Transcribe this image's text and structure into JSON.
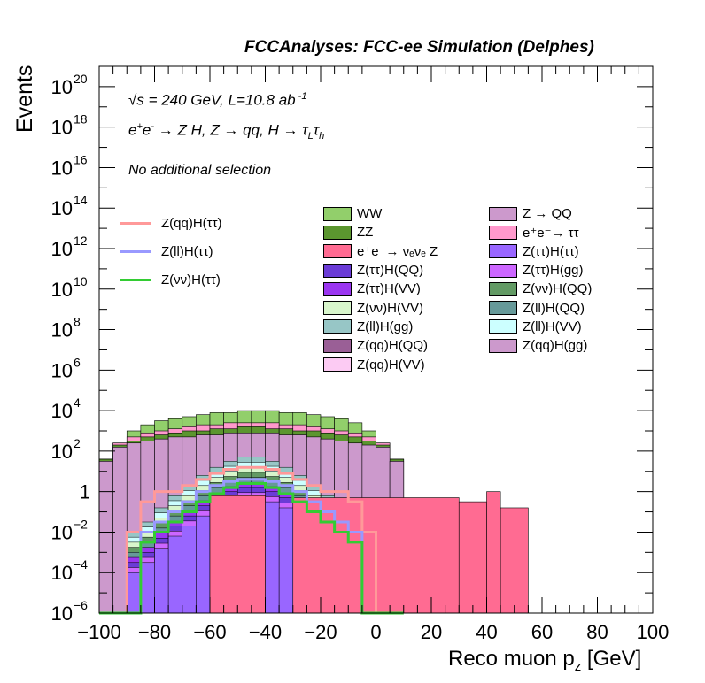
{
  "chart_data": {
    "type": "histogram",
    "title": "FCCAnalyses: FCC-ee Simulation (Delphes)",
    "xlabel": "Reco muon p",
    "xlabel_sub": "z",
    "xlabel_unit": " [GeV]",
    "ylabel": "Events",
    "xlim": [
      -100,
      100
    ],
    "ylim_log10": [
      -6,
      21
    ],
    "y_scale": "log",
    "x_ticks": [
      "−100",
      "−80",
      "−60",
      "−40",
      "−20",
      "0",
      "20",
      "40",
      "60",
      "80",
      "100"
    ],
    "y_ticks": [
      {
        "base": "10",
        "exp": "−6"
      },
      {
        "base": "10",
        "exp": "−4"
      },
      {
        "base": "10",
        "exp": "−2"
      },
      {
        "base": "1",
        "exp": ""
      },
      {
        "base": "10",
        "exp": "2"
      },
      {
        "base": "10",
        "exp": "4"
      },
      {
        "base": "10",
        "exp": "6"
      },
      {
        "base": "10",
        "exp": "8"
      },
      {
        "base": "10",
        "exp": "10"
      },
      {
        "base": "10",
        "exp": "12"
      },
      {
        "base": "10",
        "exp": "14"
      },
      {
        "base": "10",
        "exp": "16"
      },
      {
        "base": "10",
        "exp": "18"
      },
      {
        "base": "10",
        "exp": "20"
      }
    ],
    "annotations": {
      "energy_prefix": "s",
      "energy_rest": " = 240 GeV, L=10.8 ab",
      "energy_sup": " -1",
      "process": "e",
      "selection": "No additional selection"
    },
    "stack_legend_col1": [
      {
        "label": "WW",
        "color": "#92cf6b"
      },
      {
        "label": "ZZ",
        "color": "#5b962f"
      },
      {
        "label": "e⁺e⁻→ νₑνₑ Z",
        "color": "#ff6b92"
      },
      {
        "label": "Z(ττ)H(QQ)",
        "color": "#6a3bd6"
      },
      {
        "label": "Z(ττ)H(VV)",
        "color": "#9a35f0"
      },
      {
        "label": "Z(νν)H(VV)",
        "color": "#d8f6cc"
      },
      {
        "label": "Z(ll)H(gg)",
        "color": "#97c6c6"
      },
      {
        "label": "Z(qq)H(QQ)",
        "color": "#9a5f96"
      },
      {
        "label": "Z(qq)H(VV)",
        "color": "#fccbf3"
      }
    ],
    "stack_legend_col2": [
      {
        "label": "Z → QQ",
        "color": "#cc99cc"
      },
      {
        "label": "e⁺e⁻→ ττ",
        "color": "#ff99cc"
      },
      {
        "label": "Z(ττ)H(ττ)",
        "color": "#9966ff"
      },
      {
        "label": "Z(ττ)H(gg)",
        "color": "#cc66ff"
      },
      {
        "label": "Z(νν)H(QQ)",
        "color": "#629a64"
      },
      {
        "label": "Z(ll)H(QQ)",
        "color": "#669999"
      },
      {
        "label": "Z(ll)H(VV)",
        "color": "#ccffff"
      },
      {
        "label": "Z(qq)H(gg)",
        "color": "#cc99cc"
      }
    ],
    "signal_legend": [
      {
        "label": "Z(qq)H(ττ)",
        "color": "#ff9999"
      },
      {
        "label": "Z(ll)H(ττ)",
        "color": "#9999ff"
      },
      {
        "label": "Z(νν)H(ττ)",
        "color": "#33cc33"
      }
    ],
    "bin_width": 5,
    "bin_edges_start": -100,
    "stack_totals_log10": [
      1.6,
      2.4,
      3.0,
      3.3,
      3.5,
      3.6,
      3.7,
      3.8,
      3.9,
      3.9,
      4.0,
      4.0,
      4.0,
      3.9,
      3.9,
      3.8,
      3.7,
      3.6,
      3.4,
      3.0,
      2.4,
      1.6
    ],
    "stack_layers_log10": [
      {
        "name": "Z → QQ",
        "color": "#cc99cc",
        "values": [
          1.5,
          2.2,
          2.4,
          2.5,
          2.6,
          2.7,
          2.7,
          2.8,
          2.8,
          2.9,
          2.9,
          2.9,
          2.9,
          2.8,
          2.8,
          2.7,
          2.6,
          2.5,
          2.4,
          2.3,
          2.2,
          1.5
        ]
      },
      {
        "name": "ZZ",
        "color": "#5b962f",
        "values": [
          1.6,
          2.3,
          2.5,
          2.7,
          2.8,
          2.9,
          3.0,
          3.0,
          3.1,
          3.1,
          3.2,
          3.2,
          3.1,
          3.1,
          3.0,
          3.0,
          2.9,
          2.8,
          2.7,
          2.5,
          2.3,
          1.6
        ]
      },
      {
        "name": "e⁺e⁻→ ττ",
        "color": "#ff99cc",
        "values": [
          1.6,
          2.4,
          2.7,
          2.9,
          3.0,
          3.1,
          3.2,
          3.3,
          3.3,
          3.4,
          3.4,
          3.4,
          3.4,
          3.3,
          3.3,
          3.2,
          3.1,
          3.0,
          2.9,
          2.7,
          2.4,
          1.6
        ]
      },
      {
        "name": "WW",
        "color": "#92cf6b",
        "values": [
          1.6,
          2.4,
          3.0,
          3.3,
          3.5,
          3.6,
          3.7,
          3.8,
          3.9,
          3.9,
          4.0,
          4.0,
          4.0,
          3.9,
          3.9,
          3.8,
          3.7,
          3.6,
          3.4,
          3.0,
          2.4,
          1.6
        ]
      }
    ],
    "minor_stack_log10": [
      -6,
      -6,
      -2,
      -1.5,
      -0.8,
      -0.2,
      0.3,
      0.8,
      1.2,
      1.5,
      1.7,
      1.7,
      1.5,
      1.2,
      0.8,
      0.3,
      -0.2,
      -0.8,
      -1.5,
      -2,
      -6,
      -6
    ],
    "nunuz_log10": [
      -6,
      -6,
      -6,
      -6,
      -6,
      -6,
      -6,
      -6,
      -6,
      -6,
      -6,
      -6,
      -6,
      -6,
      -6,
      -6,
      -6,
      -6,
      -6,
      -6,
      -6,
      -6
    ],
    "signal_series_log10": {
      "Z(qq)H(ττ)": [
        -6,
        -6,
        -2,
        -0.5,
        0.0,
        0.0,
        0.3,
        0.6,
        0.9,
        1.1,
        1.2,
        1.2,
        1.1,
        0.9,
        0.6,
        0.3,
        0.0,
        0.0,
        -0.5,
        -2,
        -6,
        -6
      ],
      "Z(ll)H(ττ)": [
        -6,
        -6,
        -6,
        -2,
        -1.5,
        -1.0,
        -0.5,
        0.0,
        0.3,
        0.5,
        0.6,
        0.6,
        0.5,
        0.3,
        0.0,
        -0.5,
        -1.0,
        -1.5,
        -2,
        -6,
        -6,
        -6
      ],
      "Z(νν)H(ττ)": [
        -6,
        -6,
        -6,
        -2.5,
        -2,
        -1.5,
        -1.0,
        -0.5,
        -0.1,
        0.2,
        0.4,
        0.4,
        0.2,
        -0.1,
        -0.5,
        -1.0,
        -1.5,
        -2,
        -2.5,
        -6,
        -6,
        -6
      ]
    }
  }
}
